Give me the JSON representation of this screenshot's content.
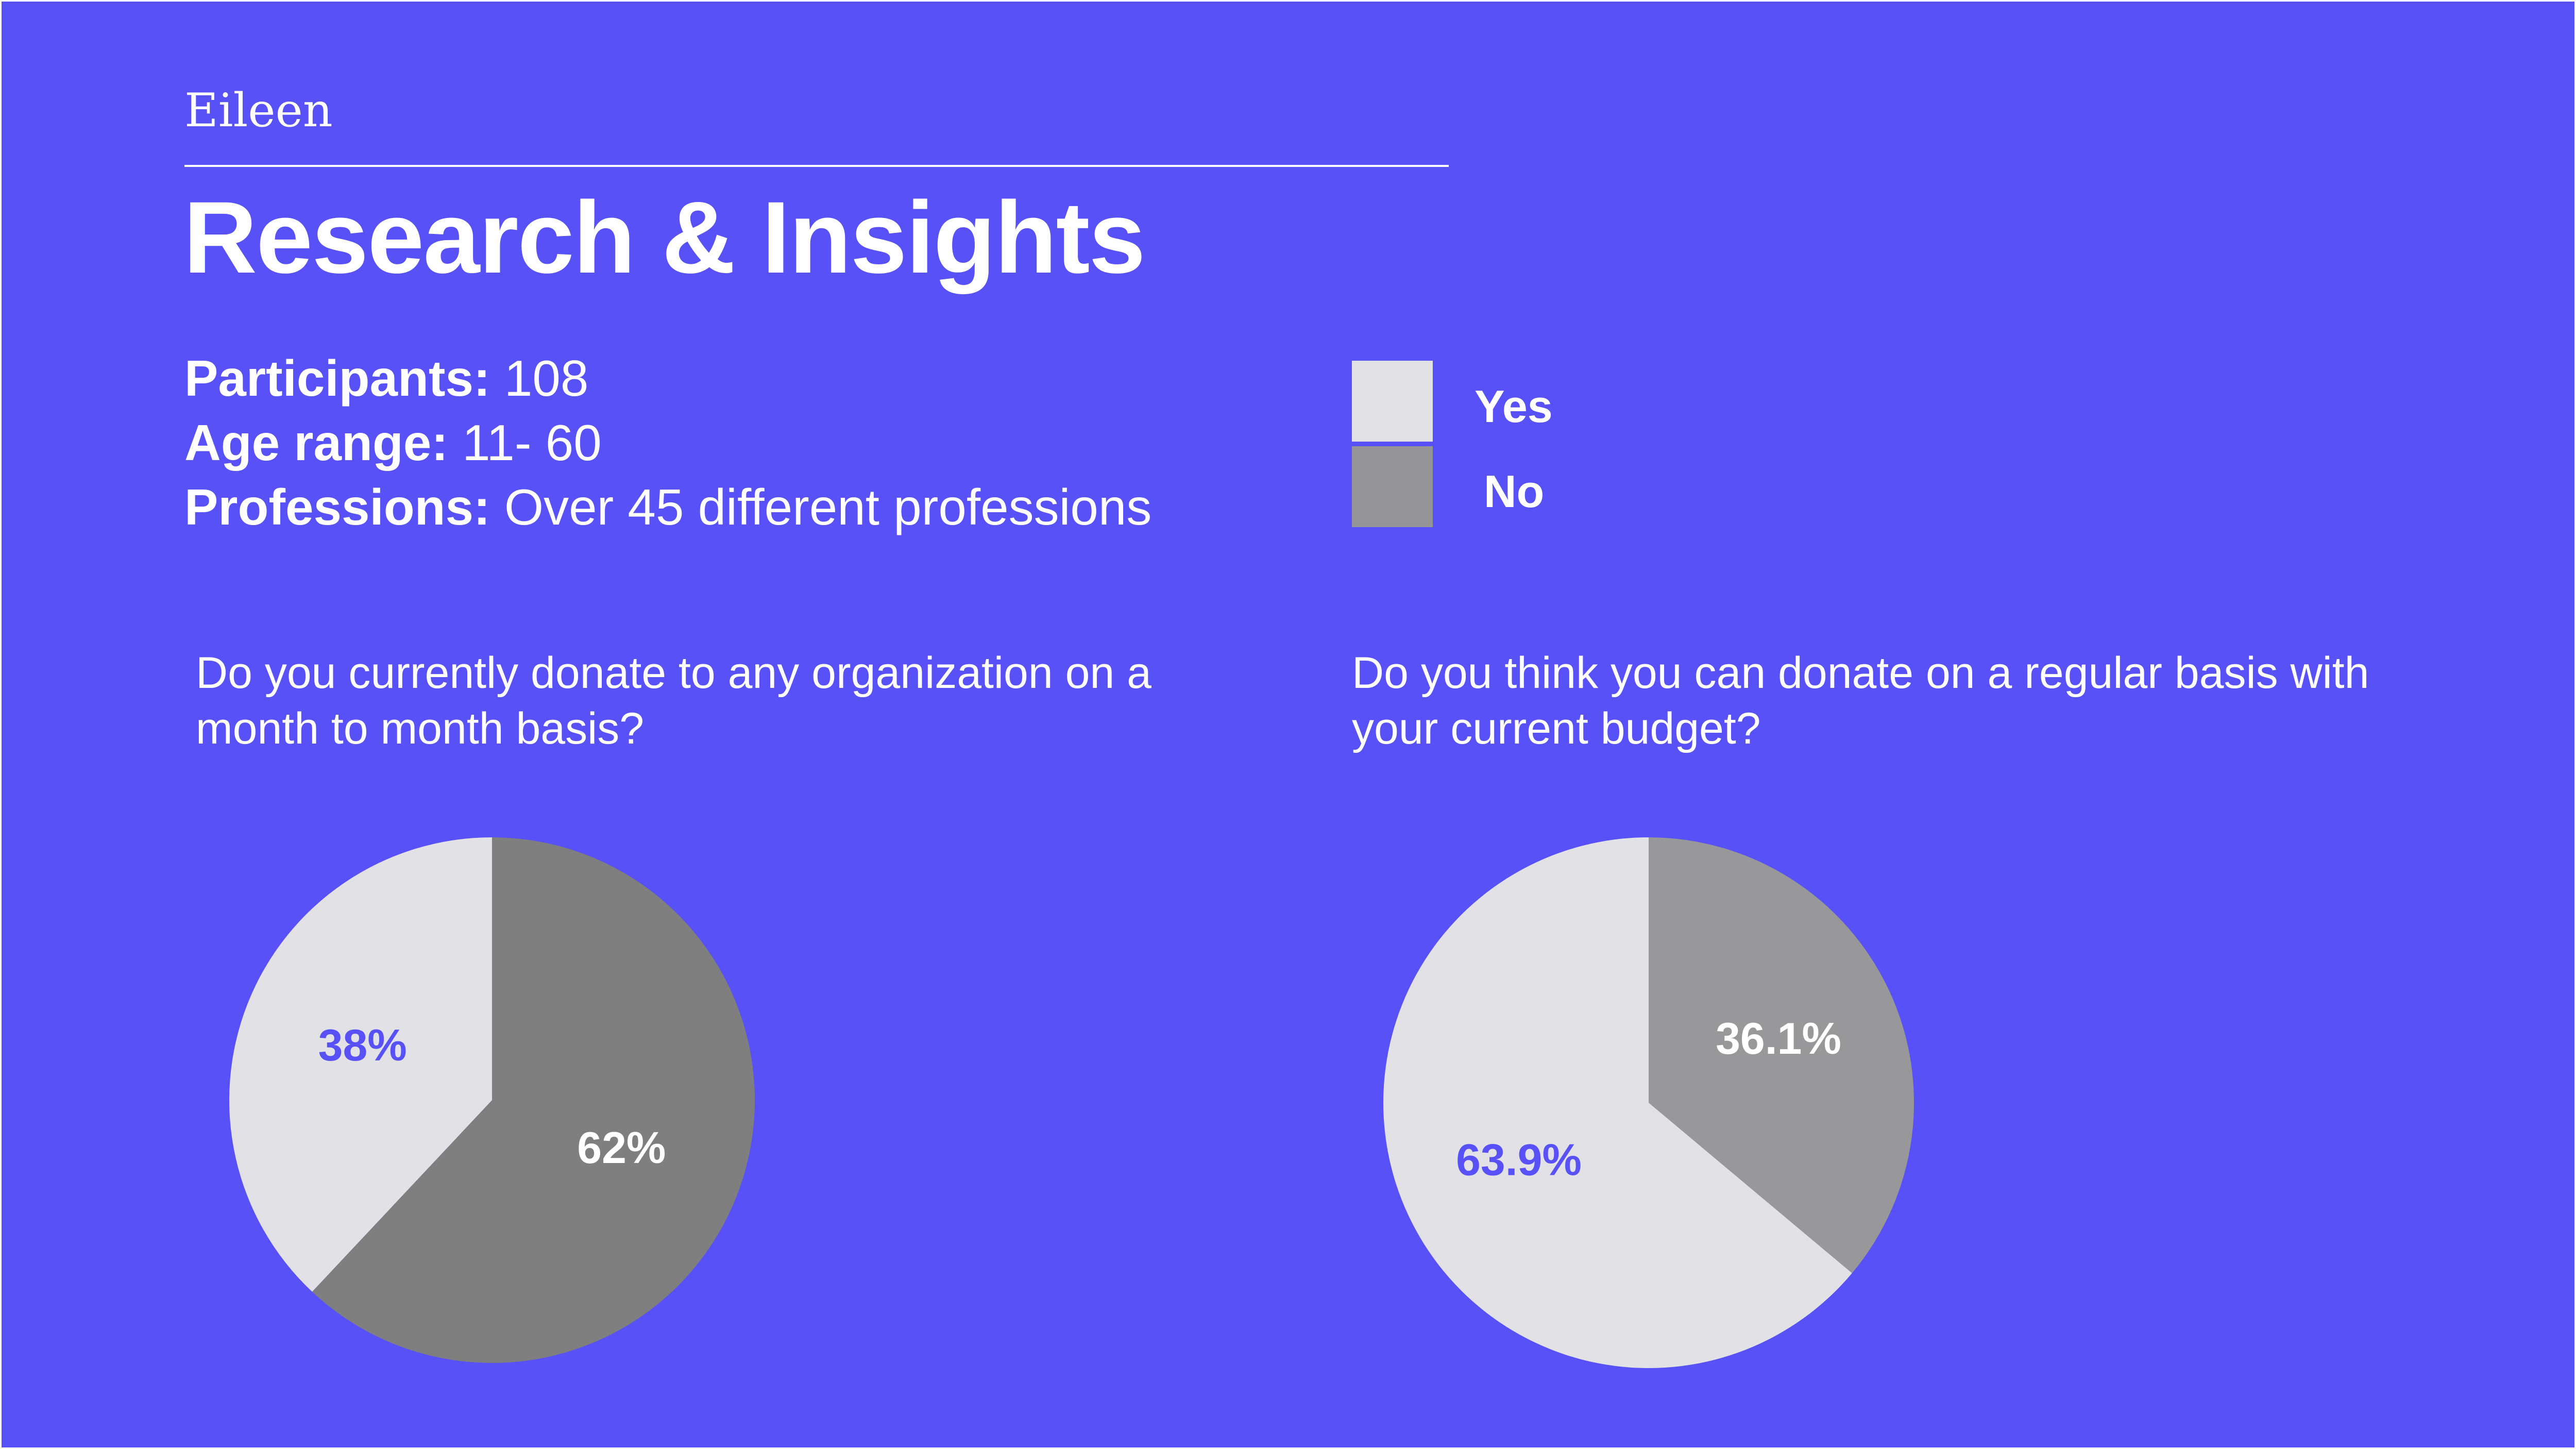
{
  "colors": {
    "background": "#5951f8",
    "yes": "#e2e2e6",
    "no_chart1": "#7f7f7f",
    "no_chart2": "#98989b",
    "label_on_light": "#5951f8",
    "label_on_dark": "#ffffff"
  },
  "header": {
    "brand": "Eileen",
    "title": "Research & Insights"
  },
  "stats": [
    {
      "key": "Participants:",
      "value": " 108"
    },
    {
      "key": "Age range:",
      "value": " 11- 60"
    },
    {
      "key": "Professions:",
      "value": " Over 45 different professions"
    }
  ],
  "legend": {
    "yes": "Yes",
    "no": "No"
  },
  "chart_data": [
    {
      "type": "pie",
      "title": "Do you currently donate to any organization on a month to month basis?",
      "categories": [
        "Yes",
        "No"
      ],
      "values": [
        38,
        62
      ],
      "labels": [
        "38%",
        "62%"
      ]
    },
    {
      "type": "pie",
      "title": "Do you think you can donate on a regular basis with your current budget?",
      "categories": [
        "Yes",
        "No"
      ],
      "values": [
        63.9,
        36.1
      ],
      "labels": [
        "63.9%",
        "36.1%"
      ]
    }
  ]
}
